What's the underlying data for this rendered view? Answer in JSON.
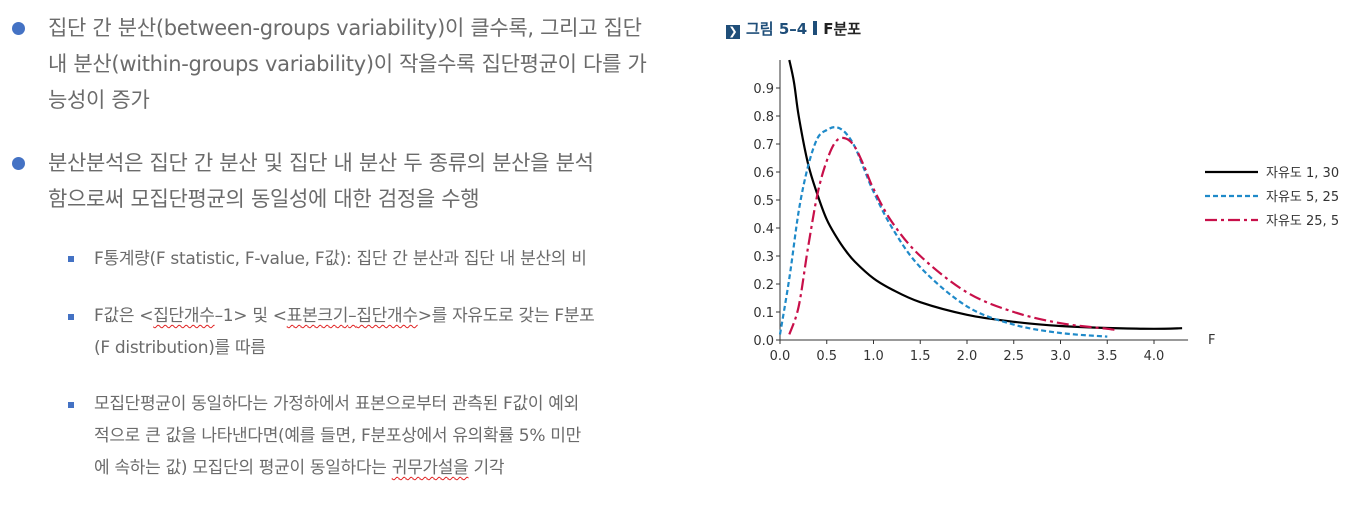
{
  "bullets": [
    {
      "lines": [
        "집단 간 분산(between-groups variability)이 클수록, 그리고 집단",
        "내 분산(within-groups variability)이 작을수록 집단평균이 다를 가",
        "능성이 증가"
      ]
    },
    {
      "lines": [
        "분산분석은 집단 간 분산 및 집단 내 분산 두 종류의 분산을 분석",
        "함으로써 모집단평균의 동일성에 대한 검정을 수행"
      ]
    }
  ],
  "sub_bullets": [
    {
      "lines": [
        "F통계량(F statistic, F-value, F값): 집단 간 분산과 집단 내 분산의 비"
      ]
    },
    {
      "line1": {
        "a": "F값은 <",
        "b": "집단개수",
        "c": "–1> 및 <",
        "d": "표본크기",
        "e": "–",
        "f": "집단개수",
        "g": ">를 자유도로 갖는 F분포"
      },
      "line2": "(F distribution)를 따름"
    },
    {
      "line1": "모집단평균이 동일하다는 가정하에서 표본으로부터 관측된 F값이 예외",
      "line2": "적으로 큰 값을 나타낸다면(예를 들면, F분포상에서 유의확률 5% 미만",
      "line3": {
        "a": "에 속하는 값) 모집단의 평균이 동일하다는 ",
        "b": "귀무가설을",
        "c": " 기각"
      }
    }
  ],
  "figure": {
    "label": "그림 5–4",
    "subtitle": "F분포"
  },
  "chart_data": {
    "type": "line",
    "xlabel": "F",
    "ylabel": "",
    "xlim": [
      0,
      4.3
    ],
    "ylim": [
      0,
      1.0
    ],
    "x_ticks": [
      "0.0",
      "0.5",
      "1.0",
      "1.5",
      "2.0",
      "2.5",
      "3.0",
      "3.5",
      "4.0"
    ],
    "y_ticks": [
      "0.0",
      "0.1",
      "0.2",
      "0.3",
      "0.4",
      "0.5",
      "0.6",
      "0.7",
      "0.8",
      "0.9"
    ],
    "legend_position": "right",
    "series": [
      {
        "name": "자유도 1, 30",
        "style": "solid",
        "color": "#000000",
        "x": [
          0.1,
          0.15,
          0.2,
          0.3,
          0.4,
          0.5,
          0.6,
          0.7,
          0.8,
          1.0,
          1.2,
          1.5,
          2.0,
          2.5,
          3.0,
          3.5,
          4.0,
          4.3
        ],
        "y": [
          1.0,
          0.92,
          0.8,
          0.63,
          0.52,
          0.43,
          0.37,
          0.32,
          0.28,
          0.22,
          0.18,
          0.135,
          0.09,
          0.065,
          0.05,
          0.043,
          0.04,
          0.042
        ]
      },
      {
        "name": "자유도 5, 25",
        "style": "dashed",
        "color": "#1f8ac9",
        "x": [
          0.0,
          0.1,
          0.2,
          0.3,
          0.4,
          0.5,
          0.6,
          0.7,
          0.8,
          0.9,
          1.0,
          1.2,
          1.5,
          2.0,
          2.5,
          3.0,
          3.5
        ],
        "y": [
          0.02,
          0.22,
          0.46,
          0.62,
          0.72,
          0.75,
          0.76,
          0.74,
          0.69,
          0.61,
          0.53,
          0.4,
          0.26,
          0.12,
          0.055,
          0.025,
          0.012
        ]
      },
      {
        "name": "자유도 25, 5",
        "style": "dashdot",
        "color": "#c8104a",
        "x": [
          0.1,
          0.2,
          0.3,
          0.4,
          0.5,
          0.6,
          0.7,
          0.8,
          0.9,
          1.0,
          1.2,
          1.5,
          2.0,
          2.5,
          3.0,
          3.5,
          3.6
        ],
        "y": [
          0.02,
          0.12,
          0.33,
          0.52,
          0.64,
          0.71,
          0.72,
          0.69,
          0.62,
          0.54,
          0.42,
          0.3,
          0.17,
          0.1,
          0.06,
          0.04,
          0.035
        ]
      }
    ]
  }
}
